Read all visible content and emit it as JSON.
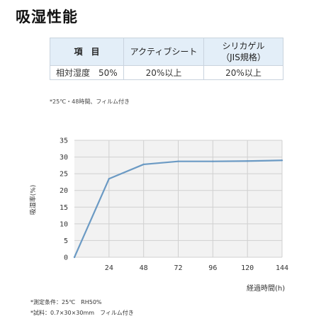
{
  "page": {
    "title": "吸湿性能"
  },
  "table": {
    "headers": [
      "項　目",
      "アクティブシート",
      "シリカゲル\n（JIS規格）"
    ],
    "row": [
      "相対湿度　50%",
      "20%以上",
      "20%以上"
    ]
  },
  "spec_note": "*25℃・48時間、フィルム付き",
  "chart_data": {
    "type": "line",
    "x": [
      0,
      24,
      48,
      72,
      96,
      120,
      144
    ],
    "series": [
      {
        "values": [
          0,
          23.5,
          27.8,
          28.7,
          28.7,
          28.8,
          29.0
        ]
      }
    ],
    "x_tick_labels": [
      "24",
      "48",
      "72",
      "96",
      "120",
      "144"
    ],
    "y_ticks": [
      0,
      5,
      10,
      15,
      20,
      25,
      30,
      35
    ],
    "xlim": [
      0,
      144
    ],
    "ylim": [
      0,
      35
    ],
    "xlabel": "経過時間(h)",
    "ylabel": "吸湿率(%)",
    "grid": true,
    "line_color": "#6b9ac4",
    "grid_color": "#d0d0d0",
    "plot_background": "#f2f2f2"
  },
  "footnotes": [
    "*測定条件：25℃　RH50%",
    "*試料：0.7×30×30mm　フィルム付き"
  ]
}
